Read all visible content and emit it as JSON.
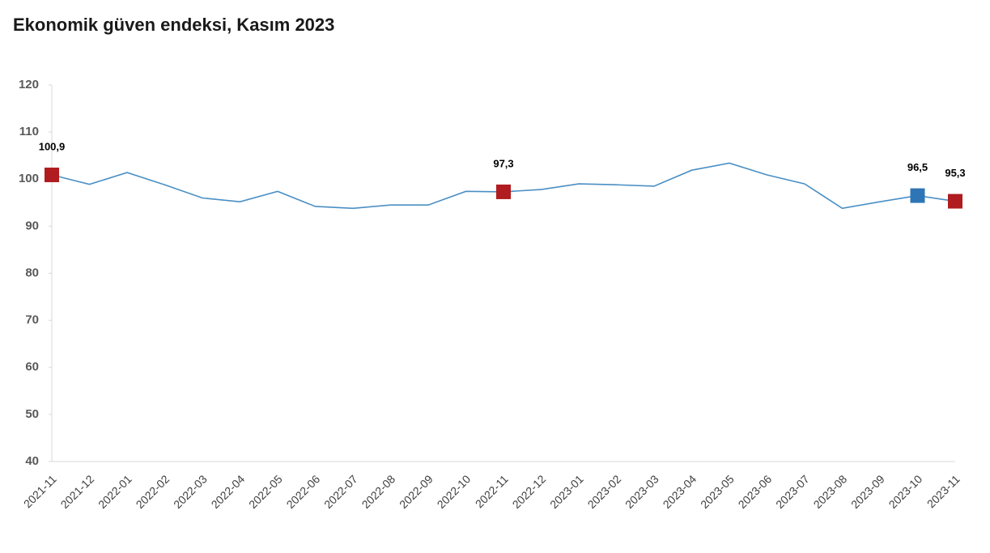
{
  "chart_data": {
    "type": "line",
    "title": "Ekonomik güven endeksi, Kasım 2023",
    "categories": [
      "2021-11",
      "2021-12",
      "2022-01",
      "2022-02",
      "2022-03",
      "2022-04",
      "2022-05",
      "2022-06",
      "2022-07",
      "2022-08",
      "2022-09",
      "2022-10",
      "2022-11",
      "2022-12",
      "2023-01",
      "2023-02",
      "2023-03",
      "2023-04",
      "2023-05",
      "2023-06",
      "2023-07",
      "2023-08",
      "2023-09",
      "2023-10",
      "2023-11"
    ],
    "values": [
      100.9,
      98.9,
      101.4,
      98.8,
      96.0,
      95.2,
      97.4,
      94.2,
      93.8,
      94.5,
      94.5,
      97.4,
      97.3,
      97.8,
      99.0,
      98.8,
      98.5,
      101.9,
      103.4,
      100.9,
      99.0,
      93.8,
      95.2,
      96.5,
      95.3
    ],
    "value_labels": [
      "100,9",
      null,
      null,
      null,
      null,
      null,
      null,
      null,
      null,
      null,
      null,
      null,
      "97,3",
      null,
      null,
      null,
      null,
      null,
      null,
      null,
      null,
      null,
      null,
      "96,5",
      "95,3"
    ],
    "marker_colors": [
      "#b01c1f",
      null,
      null,
      null,
      null,
      null,
      null,
      null,
      null,
      null,
      null,
      null,
      "#b01c1f",
      null,
      null,
      null,
      null,
      null,
      null,
      null,
      null,
      null,
      null,
      "#2e75b6",
      "#b01c1f"
    ],
    "color": "#4a8fc4",
    "ylim": [
      40,
      120
    ],
    "yticks": [
      40,
      50,
      60,
      70,
      80,
      90,
      100,
      110,
      120
    ],
    "grid": false
  }
}
